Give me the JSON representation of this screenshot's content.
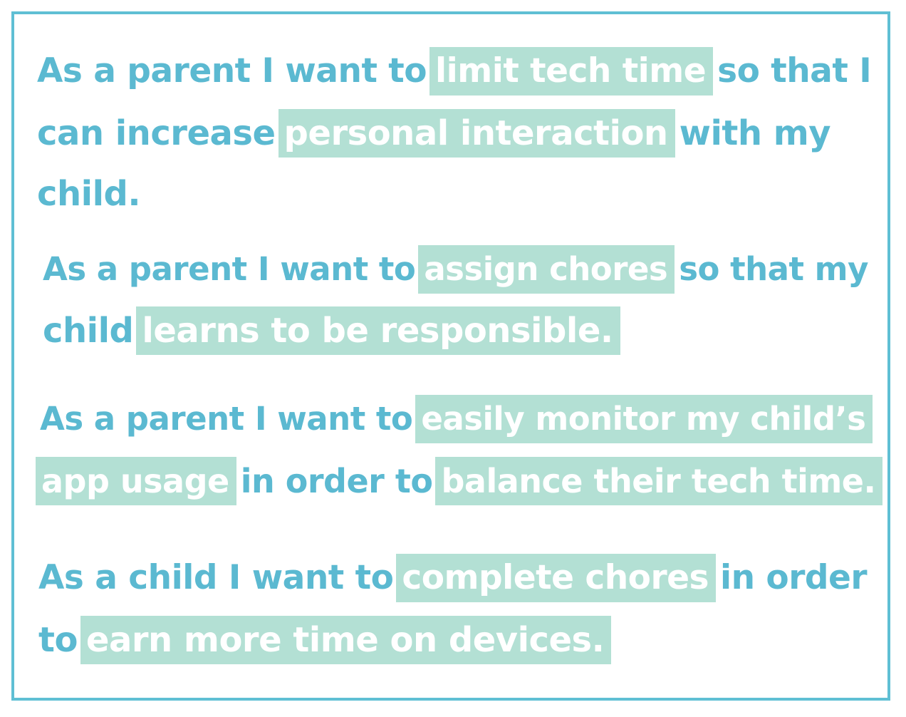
{
  "stories": [
    {
      "lines": [
        [
          {
            "text": "As a parent I want to",
            "highlight": false
          },
          {
            "text": "limit tech time",
            "highlight": true
          },
          {
            "text": "so that I",
            "highlight": false
          }
        ],
        [
          {
            "text": "can increase",
            "highlight": false
          },
          {
            "text": "personal interaction",
            "highlight": true
          },
          {
            "text": "with my",
            "highlight": false
          }
        ],
        [
          {
            "text": "child.",
            "highlight": false
          }
        ]
      ]
    },
    {
      "lines": [
        [
          {
            "text": "As a parent I want to",
            "highlight": false
          },
          {
            "text": "assign chores",
            "highlight": true
          },
          {
            "text": "so that my",
            "highlight": false
          }
        ],
        [
          {
            "text": "child",
            "highlight": false
          },
          {
            "text": "learns to be responsible.",
            "highlight": true
          }
        ]
      ]
    },
    {
      "lines": [
        [
          {
            "text": "As a parent I want to",
            "highlight": false
          },
          {
            "text": "easily monitor my child’s",
            "highlight": true
          }
        ],
        [
          {
            "text": "app usage",
            "highlight": true
          },
          {
            "text": "in order to",
            "highlight": false
          },
          {
            "text": "balance their tech time.",
            "highlight": true
          }
        ]
      ]
    },
    {
      "lines": [
        [
          {
            "text": "As a child I want to",
            "highlight": false
          },
          {
            "text": "complete chores",
            "highlight": true
          },
          {
            "text": "in order",
            "highlight": false
          }
        ],
        [
          {
            "text": "to",
            "highlight": false
          },
          {
            "text": "earn more time on devices.",
            "highlight": true
          }
        ]
      ]
    }
  ],
  "colors": {
    "text": "#5bb9d1",
    "highlight_bg": "#b3e0d4",
    "highlight_text": "#ffffff",
    "border": "#5fbfd4"
  }
}
